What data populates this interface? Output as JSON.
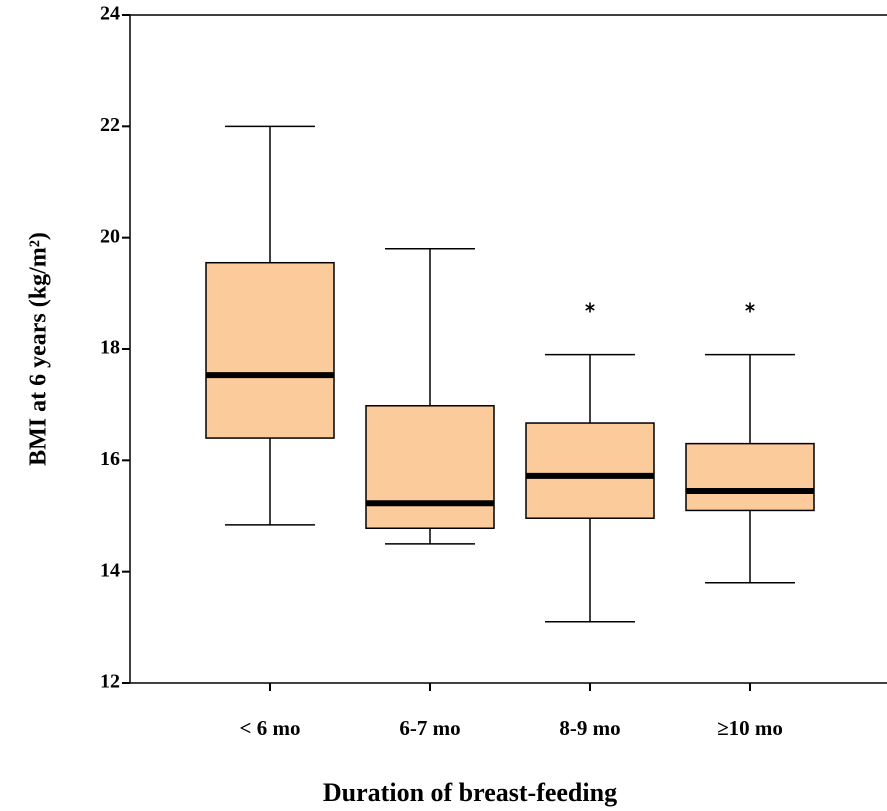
{
  "chart_data": {
    "type": "box",
    "ylabel": "BMI at 6 years (kg/m²)",
    "xlabel": "Duration of breast-feeding",
    "categories": [
      "< 6 mo",
      "6-7 mo",
      "8-9 mo",
      "≥10 mo"
    ],
    "boxes": [
      {
        "min": 14.84,
        "q1": 16.4,
        "median": 17.53,
        "q3": 19.55,
        "max": 22.0,
        "outliers": []
      },
      {
        "min": 14.5,
        "q1": 14.78,
        "median": 15.23,
        "q3": 16.98,
        "max": 19.8,
        "outliers": []
      },
      {
        "min": 13.1,
        "q1": 14.96,
        "median": 15.72,
        "q3": 16.67,
        "max": 17.9,
        "outliers": [
          18.8
        ]
      },
      {
        "min": 13.8,
        "q1": 15.1,
        "median": 15.45,
        "q3": 16.3,
        "max": 17.9,
        "outliers": [
          18.8
        ]
      }
    ],
    "color": "#fccb9c",
    "ylim": [
      12,
      24
    ],
    "yticks": [
      12,
      14,
      16,
      18,
      20,
      22,
      24
    ]
  }
}
